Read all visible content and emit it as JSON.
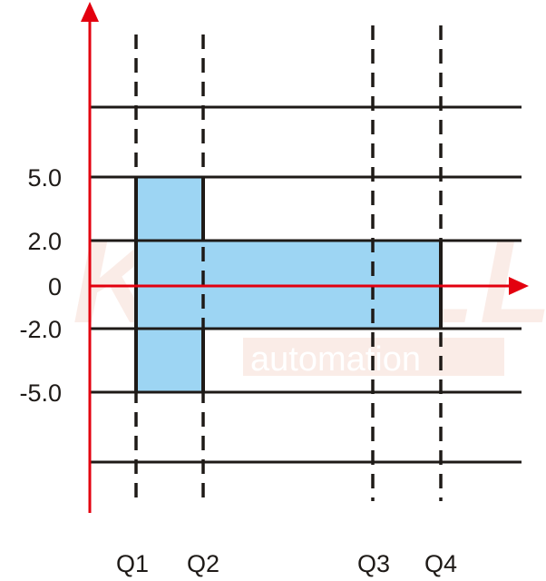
{
  "colors": {
    "axis": "#e3000f",
    "grid": "#1e1a17",
    "fill": "#9dd5f3",
    "watermark": "#f3c9bd"
  },
  "y_labels": [
    "5.0",
    "2.0",
    "0",
    "-2.0",
    "-5.0"
  ],
  "x_labels": [
    "Q1",
    "Q2",
    "Q3",
    "Q4"
  ],
  "watermark": {
    "brand": "KEWILL",
    "sub": "automation"
  }
}
